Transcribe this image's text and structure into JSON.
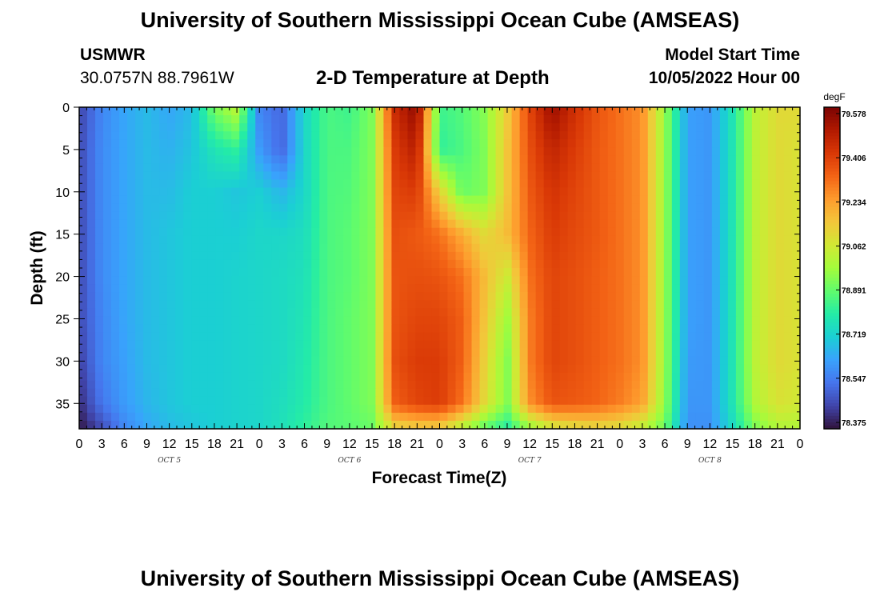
{
  "header": {
    "title": "University of Southern Mississippi Ocean Cube (AMSEAS)",
    "station": "USMWR",
    "coords": "30.0757N  88.7961W",
    "subtitle": "2-D Temperature at Depth",
    "model_start_label": "Model Start Time",
    "model_start_value": "10/05/2022 Hour 00"
  },
  "footer": {
    "title": "University of Southern Mississippi Ocean Cube (AMSEAS)"
  },
  "colors": {
    "colormap": [
      "#30123b",
      "#4145ab",
      "#4675ed",
      "#39a2fc",
      "#1bcfd4",
      "#24eca6",
      "#61fc6c",
      "#a4fc3b",
      "#d1e834",
      "#f3c63a",
      "#fe9b2d",
      "#f36315",
      "#d93806",
      "#b11901",
      "#7a0403"
    ]
  },
  "chart_data": {
    "type": "heatmap",
    "xlabel": "Forecast Time(Z)",
    "ylabel": "Depth (ft)",
    "x_tick_labels": [
      "0",
      "3",
      "6",
      "9",
      "12",
      "15",
      "18",
      "21",
      "0",
      "3",
      "6",
      "9",
      "12",
      "15",
      "18",
      "21",
      "0",
      "3",
      "6",
      "9",
      "12",
      "15",
      "18",
      "21",
      "0",
      "3",
      "6",
      "9",
      "12",
      "15",
      "18",
      "21",
      "0"
    ],
    "date_labels": [
      "OCT 5",
      "OCT 6",
      "OCT 7",
      "OCT 8"
    ],
    "xlim_hours": [
      0,
      96
    ],
    "y_ticks": [
      0,
      5,
      10,
      15,
      20,
      25,
      30,
      35
    ],
    "ylim": [
      0,
      38
    ],
    "colorbar": {
      "unit": "degF",
      "ticks": [
        "79.578",
        "79.406",
        "79.234",
        "79.062",
        "78.891",
        "78.719",
        "78.547",
        "78.375"
      ],
      "vmin": 78.375,
      "vmax": 79.578
    },
    "depths_ft": [
      0,
      5,
      10,
      15,
      20,
      25,
      30,
      35,
      38
    ],
    "hours": [
      0,
      3,
      6,
      9,
      12,
      15,
      18,
      21,
      24,
      27,
      30,
      33,
      36,
      39,
      42,
      45,
      48,
      51,
      54,
      57,
      60,
      63,
      66,
      69,
      72,
      75,
      78,
      81,
      84,
      87,
      90,
      93,
      96
    ],
    "temperature_degF": [
      [
        78.46,
        78.58,
        78.64,
        78.68,
        78.64,
        78.68,
        78.92,
        79.02,
        78.58,
        78.52,
        78.74,
        78.86,
        78.84,
        78.93,
        79.44,
        79.55,
        78.84,
        78.87,
        78.94,
        79.13,
        79.38,
        79.53,
        79.43,
        79.35,
        79.3,
        79.25,
        78.96,
        78.63,
        78.61,
        78.78,
        79.02,
        79.1,
        79.1
      ],
      [
        78.47,
        78.59,
        78.64,
        78.68,
        78.66,
        78.7,
        78.78,
        78.82,
        78.62,
        78.52,
        78.74,
        78.86,
        78.86,
        78.93,
        79.4,
        79.48,
        78.82,
        78.86,
        78.93,
        79.15,
        79.36,
        79.46,
        79.4,
        79.34,
        79.3,
        79.25,
        78.96,
        78.63,
        78.61,
        78.78,
        79.02,
        79.1,
        79.08
      ],
      [
        78.47,
        78.59,
        78.64,
        78.68,
        78.68,
        78.72,
        78.72,
        78.7,
        78.72,
        78.67,
        78.74,
        78.86,
        78.87,
        78.93,
        79.38,
        79.4,
        79.12,
        78.9,
        78.93,
        79.15,
        79.34,
        79.42,
        79.38,
        79.34,
        79.3,
        79.25,
        78.96,
        78.63,
        78.61,
        78.78,
        79.02,
        79.1,
        79.08
      ],
      [
        78.47,
        78.59,
        78.64,
        78.68,
        78.7,
        78.72,
        78.72,
        78.72,
        78.74,
        78.74,
        78.76,
        78.86,
        78.88,
        78.93,
        79.36,
        79.34,
        79.3,
        79.2,
        79.1,
        79.17,
        79.32,
        79.4,
        79.37,
        79.34,
        79.3,
        79.25,
        78.96,
        78.63,
        78.61,
        78.78,
        79.02,
        79.1,
        79.08
      ],
      [
        78.47,
        78.59,
        78.64,
        78.68,
        78.7,
        78.72,
        78.72,
        78.73,
        78.74,
        78.75,
        78.77,
        78.86,
        78.88,
        78.93,
        79.35,
        79.36,
        79.35,
        79.3,
        79.17,
        79.05,
        79.3,
        79.38,
        79.36,
        79.33,
        79.3,
        79.25,
        78.96,
        78.63,
        78.61,
        78.78,
        79.02,
        79.1,
        79.08
      ],
      [
        78.47,
        78.58,
        78.64,
        78.68,
        78.7,
        78.72,
        78.72,
        78.73,
        78.74,
        78.75,
        78.78,
        78.86,
        78.89,
        78.93,
        79.35,
        79.38,
        79.38,
        79.33,
        79.15,
        78.97,
        79.28,
        79.38,
        79.36,
        79.33,
        79.3,
        79.25,
        78.96,
        78.63,
        78.61,
        78.78,
        79.02,
        79.1,
        79.08
      ],
      [
        78.45,
        78.58,
        78.63,
        78.68,
        78.7,
        78.72,
        78.72,
        78.73,
        78.74,
        78.75,
        78.79,
        78.86,
        78.89,
        78.93,
        79.36,
        79.4,
        79.4,
        79.33,
        79.12,
        78.93,
        79.28,
        79.38,
        79.36,
        79.33,
        79.3,
        79.25,
        78.96,
        78.62,
        78.61,
        78.78,
        79.02,
        79.1,
        79.08
      ],
      [
        78.42,
        78.55,
        78.62,
        78.67,
        78.7,
        78.72,
        78.72,
        78.73,
        78.74,
        78.76,
        78.8,
        78.86,
        78.89,
        78.93,
        79.33,
        79.38,
        79.4,
        79.3,
        79.1,
        78.93,
        79.25,
        79.35,
        79.34,
        79.32,
        79.28,
        79.22,
        78.95,
        78.61,
        78.61,
        78.78,
        79.0,
        79.08,
        79.06
      ],
      [
        78.38,
        78.47,
        78.58,
        78.64,
        78.68,
        78.7,
        78.72,
        78.73,
        78.74,
        78.77,
        78.82,
        78.87,
        78.88,
        78.9,
        79.1,
        79.12,
        79.12,
        79.0,
        78.88,
        78.8,
        78.95,
        79.05,
        79.08,
        79.1,
        79.08,
        79.02,
        78.9,
        78.6,
        78.6,
        78.75,
        78.92,
        79.0,
        79.0
      ]
    ]
  }
}
